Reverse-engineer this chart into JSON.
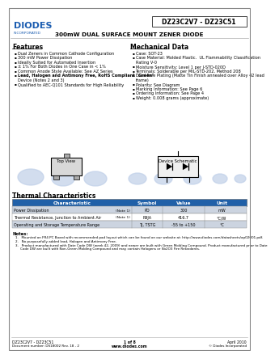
{
  "title_part": "DZ23C2V7 - DZ23C51",
  "title_sub": "300mW DUAL SURFACE MOUNT ZENER DIODE",
  "logo_text": "DIODES",
  "logo_sub": "INCORPORATED",
  "features_title": "Features",
  "features": [
    "Dual Zeners in Common Cathode Configuration",
    "300 mW Power Dissipation",
    "Ideally Suited for Automated Insertion",
    "± 1% For Both Diodes in One Case in < 1%",
    "Common Anode Style Available: See AZ Series",
    "Lead, Halogen and Antimony Free, RoHS Compliant \"Green\"",
    "    Device (Notes 2 and 3)",
    "Qualified to AEC-Q101 Standards for High Reliability"
  ],
  "features_bold": [
    false,
    false,
    false,
    false,
    false,
    true,
    false,
    false
  ],
  "mech_title": "Mechanical Data",
  "mech": [
    "Case: SOT-23",
    "Case Material: Molded Plastic.  UL Flammability Classification",
    "    Rating V-0",
    "Moisture Sensitivity: Level 1 per J-STD-020D",
    "Terminals: Solderable per MIL-STD-202, Method 208",
    "Lead Free Plating (Matte Tin Finish annealed over Alloy 42 lead",
    "    frame)",
    "Polarity: See Diagram",
    "Marking Information: See Page 6",
    "Ordering Information: See Page 4",
    "Weight: 0.008 grams (approximate)"
  ],
  "mech_bullet": [
    true,
    true,
    false,
    true,
    true,
    true,
    false,
    true,
    true,
    true,
    true
  ],
  "thermal_title": "Thermal Characteristics",
  "thermal_headers": [
    "Characteristic",
    "Symbol",
    "Value",
    "Unit"
  ],
  "thermal_rows": [
    [
      "Power Dissipation",
      "(Note 1)",
      "PD",
      "300",
      "mW"
    ],
    [
      "Thermal Resistance, Junction to Ambient Air",
      "(Note 1)",
      "RθJA",
      "416.7",
      "°C/W"
    ],
    [
      "Operating and Storage Temperature Range",
      "",
      "TJ, TSTG",
      "-55 to +150",
      "°C"
    ]
  ],
  "notes_title": "Notes:",
  "notes": [
    "1.   Mounted on FR4 PC Board with recommended pad layout which can be found on our website at: http://www.diodes.com/datasheets/ap02001.pdf.",
    "2.   No purposefully added lead, Halogen and Antimony Free.",
    "3.   Product manufactured with Date Code DW (week 42, 2009) and newer are built with Green Molding Compound. Product manufactured prior to Date",
    "     Code DW are built with Non-Green Molding Compound and may contain Halogens or Sb2O3 Fire Retardants."
  ],
  "footer_left1": "DZ23C2V7 - DZ23C51",
  "footer_left2": "Document number: DS18002 Rev. 18 - 2",
  "footer_center1": "1 of 8",
  "footer_center2": "www.diodes.com",
  "footer_right1": "April 2010",
  "footer_right2": "© Diodes Incorporated",
  "bg_color": "#ffffff",
  "table_header_bg": "#2060a8",
  "table_row1_bg": "#ccd4e0",
  "table_row2_bg": "#ffffff",
  "border_color": "#888888",
  "watermark_color": "#bfcfe8",
  "logo_color": "#1a5cb0",
  "title_box_color": "#444444"
}
